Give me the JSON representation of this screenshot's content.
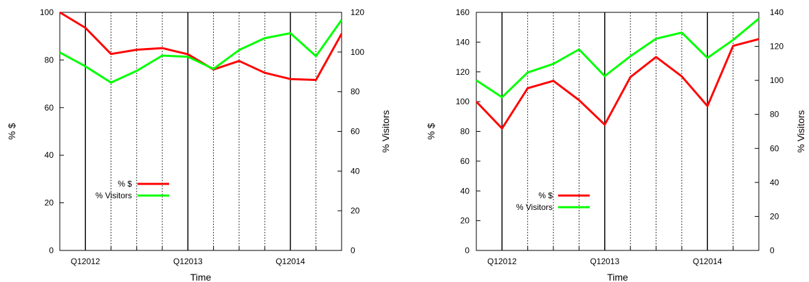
{
  "chart_data": [
    {
      "type": "line",
      "xlabel": "Time",
      "ylabel": "% $",
      "y2label": "% Visitors",
      "ylim": [
        0,
        100
      ],
      "y2lim": [
        0,
        120
      ],
      "yticks": [
        "0",
        "20",
        "40",
        "60",
        "80",
        "100"
      ],
      "y2ticks": [
        "0",
        "20",
        "40",
        "60",
        "80",
        "100",
        "120"
      ],
      "xtick_labels": [
        "Q12012",
        "Q12013",
        "Q12014"
      ],
      "quarters": 11,
      "legend": [
        "% $",
        "% Visitors"
      ],
      "legend_position": "lower-left",
      "grid": "vertical lines: solid at years, dotted at quarters",
      "series": [
        {
          "name": "% $",
          "axis": "left",
          "color": "#ff0000",
          "values": [
            100,
            93.5,
            82.5,
            84.3,
            85,
            82.4,
            76,
            79.6,
            74.6,
            72,
            71.6,
            91
          ]
        },
        {
          "name": "% Visitors",
          "axis": "right",
          "color": "#00ff00",
          "values": [
            99.8,
            92.8,
            84.6,
            90.5,
            98.2,
            97.6,
            91.5,
            101,
            107,
            109.5,
            97.9,
            116.2
          ]
        }
      ]
    },
    {
      "type": "line",
      "xlabel": "Time",
      "ylabel": "% $",
      "y2label": "% Visitors",
      "ylim": [
        0,
        160
      ],
      "y2lim": [
        0,
        140
      ],
      "yticks": [
        "0",
        "20",
        "40",
        "60",
        "80",
        "100",
        "120",
        "140",
        "160"
      ],
      "y2ticks": [
        "0",
        "20",
        "40",
        "60",
        "80",
        "100",
        "120",
        "140"
      ],
      "xtick_labels": [
        "Q12012",
        "Q12013",
        "Q12014"
      ],
      "quarters": 11,
      "legend": [
        "% $",
        "% Visitors"
      ],
      "legend_position": "lower-left",
      "grid": "vertical lines: solid at years, dotted at quarters",
      "series": [
        {
          "name": "% $",
          "axis": "left",
          "color": "#ff0000",
          "values": [
            100,
            82,
            109,
            114,
            101,
            84.5,
            116.5,
            130,
            117,
            97,
            137.5,
            142
          ]
        },
        {
          "name": "% Visitors",
          "axis": "right",
          "color": "#00ff00",
          "values": [
            100,
            90.1,
            104.6,
            109.7,
            118.2,
            102.5,
            114.2,
            124.5,
            128.1,
            113.2,
            123.8,
            136.3
          ]
        }
      ]
    }
  ]
}
